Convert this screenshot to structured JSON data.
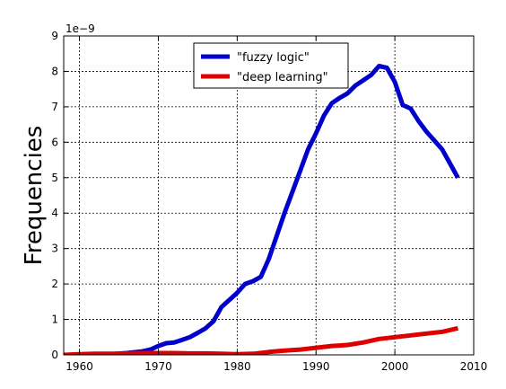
{
  "chart_data": {
    "type": "line",
    "title": "",
    "xlabel": "",
    "ylabel": "Frequencies",
    "y_offset_label": "1e−9",
    "xlim": [
      1958,
      2010
    ],
    "ylim": [
      0,
      9
    ],
    "xticks": [
      1960,
      1970,
      1980,
      1990,
      2000,
      2010
    ],
    "yticks": [
      0,
      1,
      2,
      3,
      4,
      5,
      6,
      7,
      8,
      9
    ],
    "grid": true,
    "legend_position": "top-center",
    "series": [
      {
        "name": "\"fuzzy logic\"",
        "color": "#0000cc",
        "x": [
          1958,
          1960,
          1962,
          1964,
          1966,
          1968,
          1969,
          1970,
          1971,
          1972,
          1973,
          1974,
          1975,
          1976,
          1977,
          1978,
          1979,
          1980,
          1981,
          1982,
          1983,
          1984,
          1985,
          1986,
          1987,
          1988,
          1989,
          1990,
          1991,
          1992,
          1993,
          1994,
          1995,
          1996,
          1997,
          1998,
          1999,
          2000,
          2001,
          2002,
          2003,
          2004,
          2005,
          2006,
          2007,
          2008
        ],
        "y": [
          0.0,
          0.0,
          0.01,
          0.02,
          0.05,
          0.1,
          0.15,
          0.25,
          0.33,
          0.35,
          0.42,
          0.5,
          0.62,
          0.75,
          0.95,
          1.35,
          1.55,
          1.75,
          2.0,
          2.08,
          2.2,
          2.7,
          3.35,
          4.0,
          4.6,
          5.2,
          5.8,
          6.25,
          6.75,
          7.1,
          7.25,
          7.38,
          7.6,
          7.75,
          7.9,
          8.15,
          8.1,
          7.7,
          7.05,
          6.95,
          6.6,
          6.3,
          6.05,
          5.8,
          5.4,
          5.0
        ]
      },
      {
        "name": "\"deep learning\"",
        "color": "#dd0000",
        "x": [
          1958,
          1960,
          1962,
          1964,
          1966,
          1968,
          1970,
          1972,
          1974,
          1976,
          1978,
          1980,
          1982,
          1984,
          1986,
          1988,
          1990,
          1992,
          1994,
          1996,
          1998,
          2000,
          2002,
          2004,
          2006,
          2008
        ],
        "y": [
          0.0,
          0.02,
          0.03,
          0.03,
          0.04,
          0.05,
          0.05,
          0.05,
          0.04,
          0.04,
          0.03,
          0.02,
          0.03,
          0.08,
          0.12,
          0.15,
          0.2,
          0.25,
          0.28,
          0.35,
          0.45,
          0.5,
          0.55,
          0.6,
          0.65,
          0.75
        ]
      }
    ]
  }
}
